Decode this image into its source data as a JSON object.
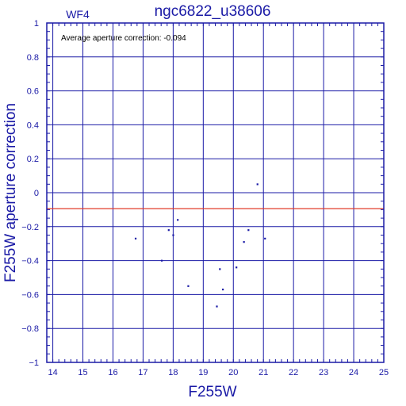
{
  "colors": {
    "axis": "#1a1aa6",
    "grid": "#1a1aa6",
    "text": "#1a1aa6",
    "points": "#1a1aa6",
    "reference_line": "#e23b2a",
    "annotation": "#000000"
  },
  "chart_data": {
    "type": "scatter",
    "title": "ngc6822_u38606",
    "chip_label": "WF4",
    "annotation": "Average aperture correction: -0.094",
    "xlabel": "F255W",
    "ylabel": "F255W aperture correction",
    "xlim": [
      13.8,
      25.0
    ],
    "ylim": [
      -1.0,
      1.0
    ],
    "x_ticks": [
      14,
      15,
      16,
      17,
      18,
      19,
      20,
      21,
      22,
      23,
      24,
      25
    ],
    "y_ticks": [
      -1,
      -0.8,
      -0.6,
      -0.4,
      -0.2,
      0,
      0.2,
      0.4,
      0.6,
      0.8,
      1
    ],
    "x_tick_labels": [
      "14",
      "15",
      "16",
      "17",
      "18",
      "19",
      "20",
      "21",
      "22",
      "23",
      "24",
      "25"
    ],
    "y_tick_labels": [
      "−1",
      "−0.8",
      "−0.6",
      "−0.4",
      "−0.2",
      "0",
      "0.2",
      "0.4",
      "0.6",
      "0.8",
      "1"
    ],
    "grid": true,
    "reference_line": {
      "y": -0.094
    },
    "points": [
      {
        "x": 16.75,
        "y": -0.27
      },
      {
        "x": 17.62,
        "y": -0.4
      },
      {
        "x": 17.85,
        "y": -0.22
      },
      {
        "x": 18.0,
        "y": -0.25
      },
      {
        "x": 18.15,
        "y": -0.16
      },
      {
        "x": 18.5,
        "y": -0.55
      },
      {
        "x": 19.45,
        "y": -0.67
      },
      {
        "x": 19.55,
        "y": -0.45
      },
      {
        "x": 19.65,
        "y": -0.57
      },
      {
        "x": 20.1,
        "y": -0.44
      },
      {
        "x": 20.35,
        "y": -0.29
      },
      {
        "x": 20.5,
        "y": -0.22
      },
      {
        "x": 20.8,
        "y": 0.05
      },
      {
        "x": 21.05,
        "y": -0.27
      }
    ]
  }
}
